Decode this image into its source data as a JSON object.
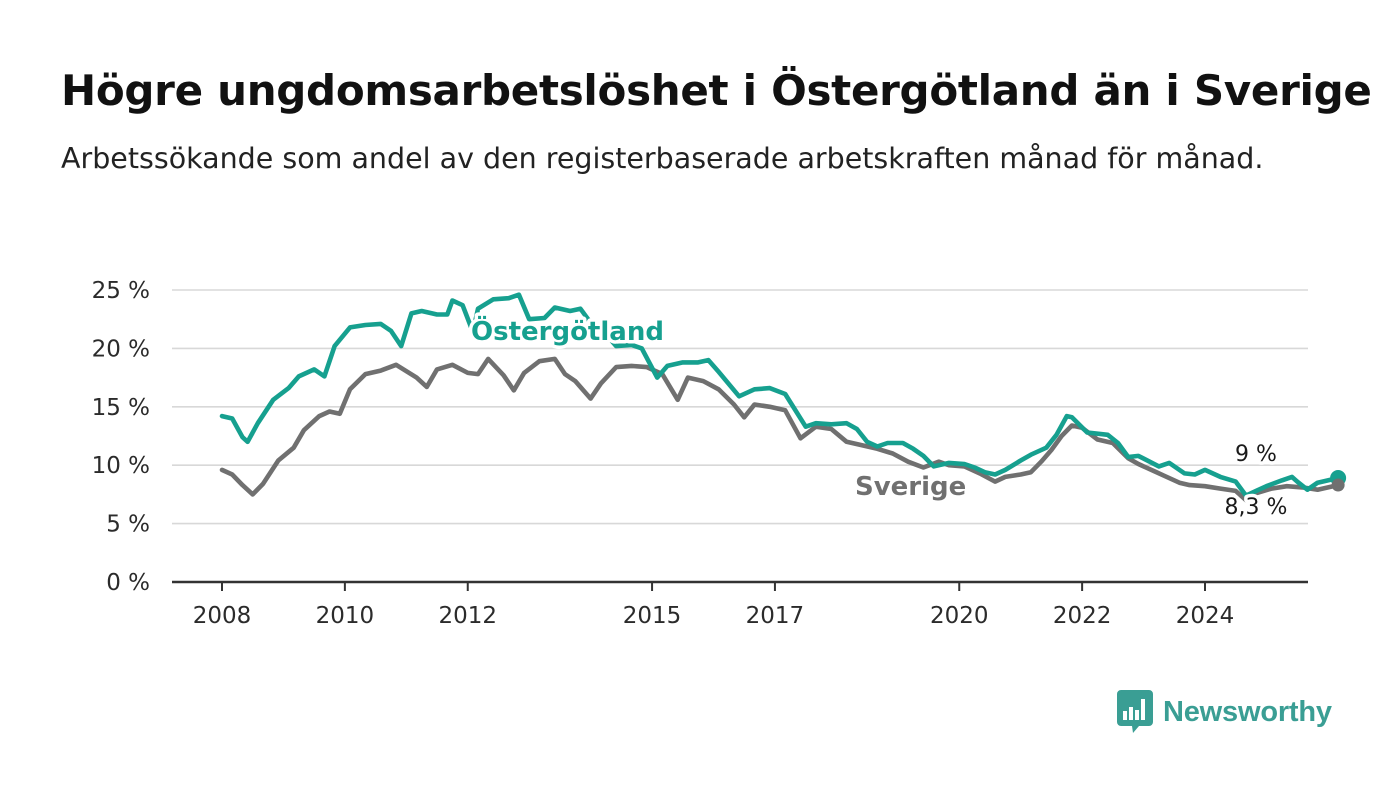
{
  "header": {
    "title": "Högre ungdomsarbetslöshet i Östergötland än i Sverige",
    "subtitle": "Arbetssökande som andel av den registerbaserade arbetskraften månad för månad."
  },
  "brand": {
    "name": "Newsworthy"
  },
  "chart_data": {
    "type": "line",
    "title": "Högre ungdomsarbetslöshet i Östergötland än i Sverige",
    "subtitle": "Arbetssökande som andel av den registerbaserade arbetskraften månad för månad.",
    "ylim": [
      0,
      25
    ],
    "xlim": [
      "2007-10",
      "2025-12"
    ],
    "y_ticks": [
      0,
      5,
      10,
      15,
      20,
      25
    ],
    "y_tick_labels": [
      "0 %",
      "5 %",
      "10 %",
      "15 %",
      "20 %",
      "25 %"
    ],
    "x_ticks": [
      "2008-01",
      "2010-01",
      "2012-01",
      "2015-01",
      "2017-01",
      "2020-01",
      "2022-01",
      "2024-01"
    ],
    "x_tick_labels": [
      "2008",
      "2010",
      "2012",
      "2015",
      "2017",
      "2020",
      "2022",
      "2024"
    ],
    "grid": "horizontal",
    "end_labels": [
      "9 %",
      "8,3 %"
    ],
    "series": [
      {
        "name": "Östergötland",
        "color": "#16a08f",
        "points": [
          [
            "2008-01",
            14.2
          ],
          [
            "2008-03",
            14.0
          ],
          [
            "2008-05",
            12.4
          ],
          [
            "2008-06",
            12.0
          ],
          [
            "2008-08",
            13.6
          ],
          [
            "2008-11",
            15.6
          ],
          [
            "2009-02",
            16.6
          ],
          [
            "2009-04",
            17.6
          ],
          [
            "2009-07",
            18.2
          ],
          [
            "2009-09",
            17.6
          ],
          [
            "2009-11",
            20.2
          ],
          [
            "2010-02",
            21.8
          ],
          [
            "2010-05",
            22.0
          ],
          [
            "2010-08",
            22.1
          ],
          [
            "2010-10",
            21.5
          ],
          [
            "2010-12",
            20.2
          ],
          [
            "2011-02",
            23.0
          ],
          [
            "2011-04",
            23.2
          ],
          [
            "2011-07",
            22.9
          ],
          [
            "2011-09",
            22.9
          ],
          [
            "2011-10",
            24.1
          ],
          [
            "2011-12",
            23.7
          ],
          [
            "2012-02",
            21.4
          ],
          [
            "2012-03",
            23.4
          ],
          [
            "2012-06",
            24.2
          ],
          [
            "2012-09",
            24.3
          ],
          [
            "2012-11",
            24.6
          ],
          [
            "2013-01",
            22.5
          ],
          [
            "2013-04",
            22.6
          ],
          [
            "2013-06",
            23.5
          ],
          [
            "2013-09",
            23.2
          ],
          [
            "2013-11",
            23.4
          ],
          [
            "2014-01",
            22.2
          ],
          [
            "2014-04",
            21.2
          ],
          [
            "2014-06",
            20.2
          ],
          [
            "2014-09",
            20.3
          ],
          [
            "2014-11",
            20.0
          ],
          [
            "2015-02",
            17.5
          ],
          [
            "2015-04",
            18.5
          ],
          [
            "2015-07",
            18.8
          ],
          [
            "2015-10",
            18.8
          ],
          [
            "2015-12",
            19.0
          ],
          [
            "2016-02",
            18.0
          ],
          [
            "2016-06",
            15.9
          ],
          [
            "2016-09",
            16.5
          ],
          [
            "2016-12",
            16.6
          ],
          [
            "2017-03",
            16.1
          ],
          [
            "2017-07",
            13.3
          ],
          [
            "2017-09",
            13.6
          ],
          [
            "2017-12",
            13.5
          ],
          [
            "2018-03",
            13.6
          ],
          [
            "2018-05",
            13.1
          ],
          [
            "2018-07",
            12.0
          ],
          [
            "2018-09",
            11.6
          ],
          [
            "2018-11",
            11.9
          ],
          [
            "2019-02",
            11.9
          ],
          [
            "2019-04",
            11.4
          ],
          [
            "2019-06",
            10.8
          ],
          [
            "2019-08",
            9.9
          ],
          [
            "2019-11",
            10.2
          ],
          [
            "2020-02",
            10.1
          ],
          [
            "2020-04",
            9.8
          ],
          [
            "2020-06",
            9.4
          ],
          [
            "2020-08",
            9.2
          ],
          [
            "2020-10",
            9.6
          ],
          [
            "2021-01",
            10.4
          ],
          [
            "2021-03",
            10.9
          ],
          [
            "2021-06",
            11.5
          ],
          [
            "2021-08",
            12.6
          ],
          [
            "2021-10",
            14.2
          ],
          [
            "2021-11",
            14.1
          ],
          [
            "2022-02",
            12.8
          ],
          [
            "2022-06",
            12.6
          ],
          [
            "2022-08",
            11.9
          ],
          [
            "2022-10",
            10.7
          ],
          [
            "2022-12",
            10.8
          ],
          [
            "2023-04",
            9.9
          ],
          [
            "2023-06",
            10.2
          ],
          [
            "2023-09",
            9.3
          ],
          [
            "2023-11",
            9.2
          ],
          [
            "2024-01",
            9.6
          ],
          [
            "2024-04",
            9.0
          ],
          [
            "2024-07",
            8.6
          ],
          [
            "2024-09",
            7.4
          ],
          [
            "2024-11",
            7.8
          ],
          [
            "2025-01",
            8.2
          ],
          [
            "2025-04",
            8.7
          ],
          [
            "2025-06",
            9.0
          ],
          [
            "2025-07",
            8.6
          ],
          [
            "2025-09",
            7.9
          ],
          [
            "2025-11",
            8.5
          ],
          [
            "2026-03",
            8.9
          ]
        ]
      },
      {
        "name": "Sverige",
        "color": "#707070",
        "points": [
          [
            "2008-01",
            9.6
          ],
          [
            "2008-03",
            9.2
          ],
          [
            "2008-05",
            8.3
          ],
          [
            "2008-07",
            7.5
          ],
          [
            "2008-09",
            8.4
          ],
          [
            "2008-12",
            10.4
          ],
          [
            "2009-03",
            11.5
          ],
          [
            "2009-05",
            13.0
          ],
          [
            "2009-08",
            14.2
          ],
          [
            "2009-10",
            14.6
          ],
          [
            "2009-12",
            14.4
          ],
          [
            "2010-02",
            16.5
          ],
          [
            "2010-05",
            17.8
          ],
          [
            "2010-08",
            18.1
          ],
          [
            "2010-11",
            18.6
          ],
          [
            "2011-03",
            17.5
          ],
          [
            "2011-05",
            16.7
          ],
          [
            "2011-07",
            18.2
          ],
          [
            "2011-10",
            18.6
          ],
          [
            "2012-01",
            17.9
          ],
          [
            "2012-03",
            17.8
          ],
          [
            "2012-05",
            19.1
          ],
          [
            "2012-08",
            17.7
          ],
          [
            "2012-10",
            16.4
          ],
          [
            "2012-12",
            17.9
          ],
          [
            "2013-03",
            18.9
          ],
          [
            "2013-06",
            19.1
          ],
          [
            "2013-08",
            17.8
          ],
          [
            "2013-10",
            17.2
          ],
          [
            "2014-01",
            15.7
          ],
          [
            "2014-03",
            17.0
          ],
          [
            "2014-06",
            18.4
          ],
          [
            "2014-09",
            18.5
          ],
          [
            "2014-12",
            18.4
          ],
          [
            "2015-03",
            17.8
          ],
          [
            "2015-06",
            15.6
          ],
          [
            "2015-08",
            17.5
          ],
          [
            "2015-11",
            17.2
          ],
          [
            "2016-02",
            16.5
          ],
          [
            "2016-05",
            15.2
          ],
          [
            "2016-07",
            14.1
          ],
          [
            "2016-09",
            15.2
          ],
          [
            "2016-12",
            15.0
          ],
          [
            "2017-03",
            14.7
          ],
          [
            "2017-06",
            12.3
          ],
          [
            "2017-09",
            13.3
          ],
          [
            "2017-12",
            13.1
          ],
          [
            "2018-03",
            12.0
          ],
          [
            "2018-06",
            11.7
          ],
          [
            "2018-09",
            11.4
          ],
          [
            "2018-12",
            11.0
          ],
          [
            "2019-03",
            10.3
          ],
          [
            "2019-06",
            9.8
          ],
          [
            "2019-09",
            10.3
          ],
          [
            "2019-11",
            10.0
          ],
          [
            "2020-02",
            9.9
          ],
          [
            "2020-05",
            9.3
          ],
          [
            "2020-08",
            8.6
          ],
          [
            "2020-10",
            9.0
          ],
          [
            "2021-01",
            9.2
          ],
          [
            "2021-03",
            9.4
          ],
          [
            "2021-05",
            10.3
          ],
          [
            "2021-07",
            11.3
          ],
          [
            "2021-09",
            12.5
          ],
          [
            "2021-11",
            13.4
          ],
          [
            "2022-01",
            13.2
          ],
          [
            "2022-04",
            12.2
          ],
          [
            "2022-07",
            11.9
          ],
          [
            "2022-10",
            10.6
          ],
          [
            "2022-12",
            10.1
          ],
          [
            "2023-03",
            9.5
          ],
          [
            "2023-05",
            9.1
          ],
          [
            "2023-08",
            8.5
          ],
          [
            "2023-10",
            8.3
          ],
          [
            "2024-01",
            8.2
          ],
          [
            "2024-04",
            8.0
          ],
          [
            "2024-07",
            7.8
          ],
          [
            "2024-09",
            7.0
          ],
          [
            "2024-11",
            7.6
          ],
          [
            "2025-02",
            8.0
          ],
          [
            "2025-05",
            8.2
          ],
          [
            "2025-08",
            8.1
          ],
          [
            "2025-11",
            7.9
          ],
          [
            "2026-03",
            8.3
          ]
        ]
      }
    ]
  }
}
